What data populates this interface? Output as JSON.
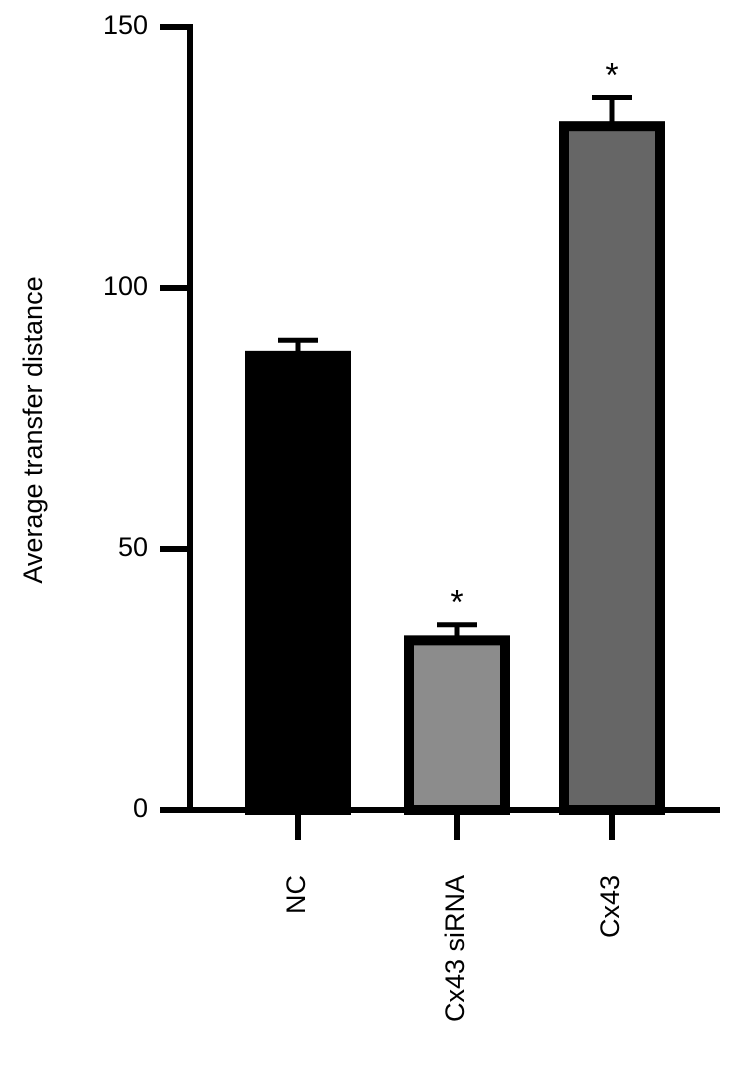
{
  "chart_data": {
    "type": "bar",
    "y_label": "Average transfer distance",
    "categories": [
      "NC",
      "Cx43 siRNA",
      "Cx43"
    ],
    "values": [
      87,
      32.5,
      131
    ],
    "errors": [
      3,
      3,
      5.5
    ],
    "colors": [
      "#000000",
      "#8c8c8c",
      "#666666"
    ],
    "annotations": [
      null,
      "*",
      "*"
    ],
    "ylim": [
      0,
      150
    ],
    "yticks": [
      0,
      50,
      100,
      150
    ],
    "grid": false
  }
}
